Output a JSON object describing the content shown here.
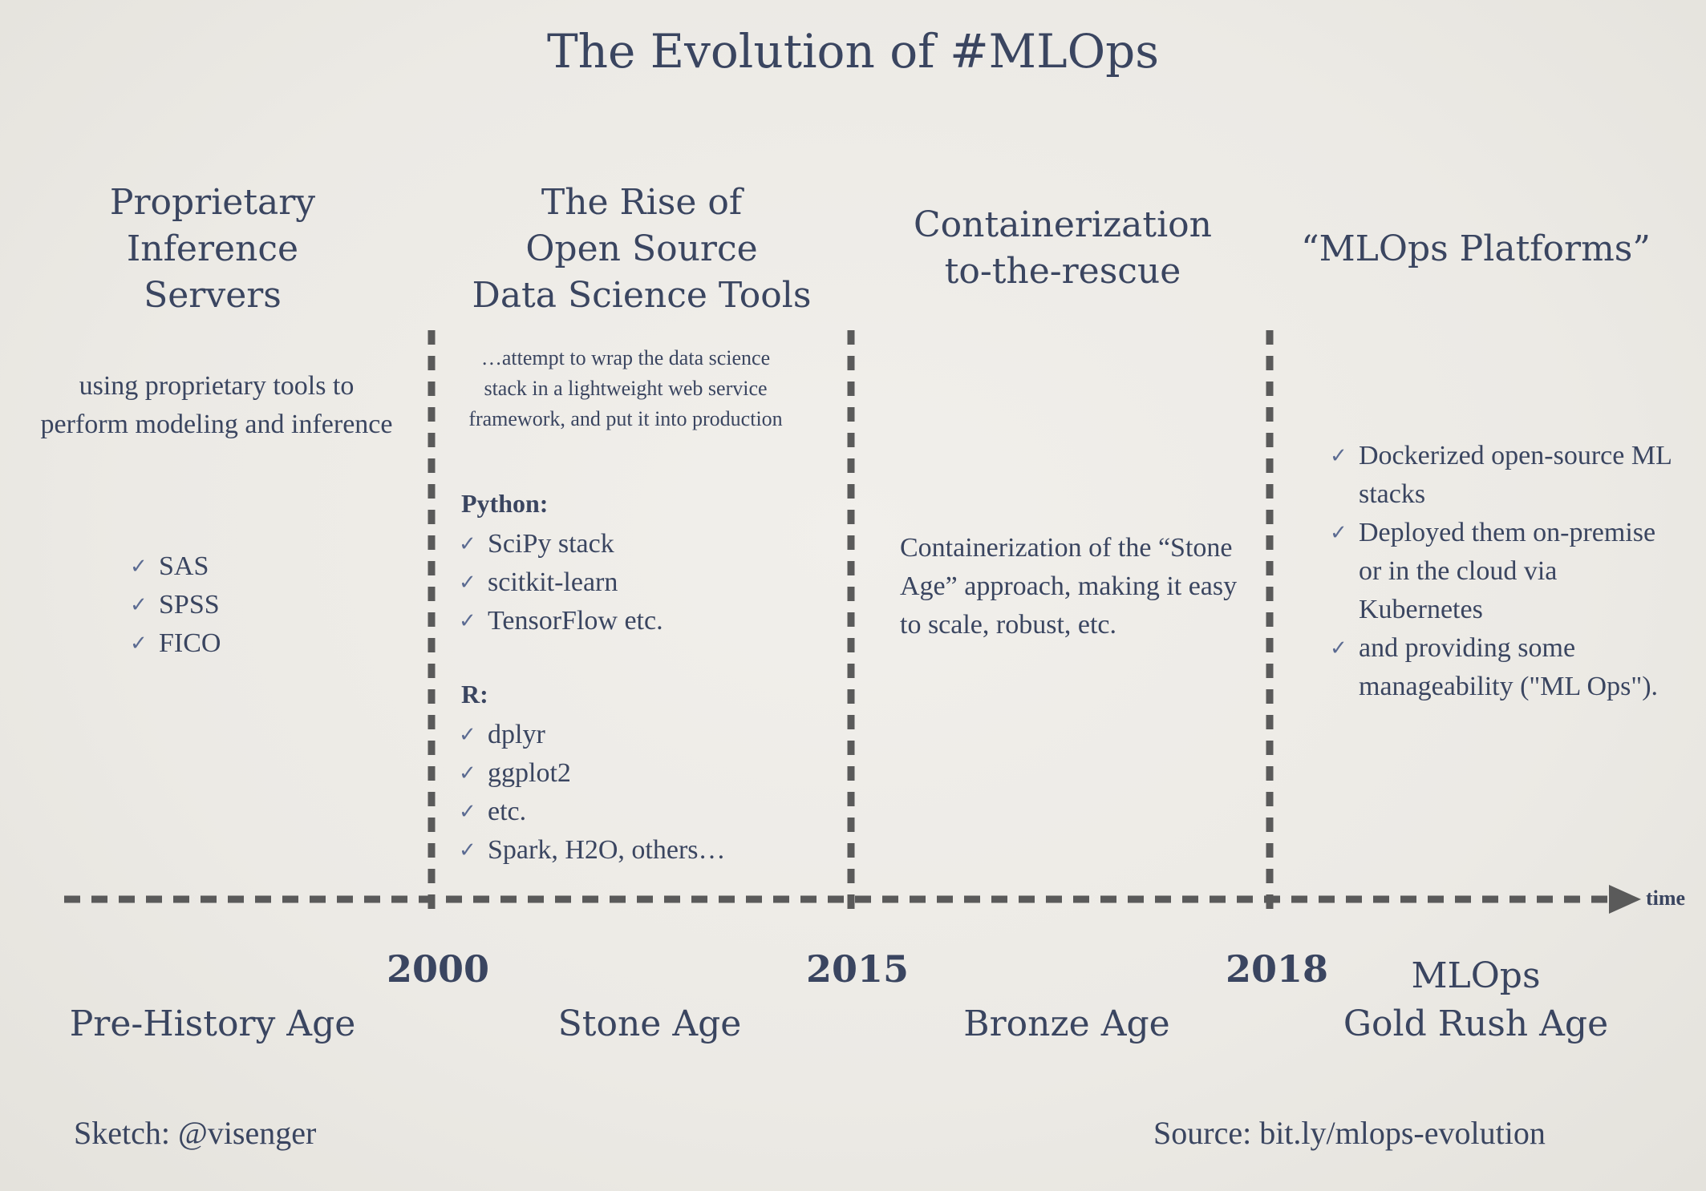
{
  "title": "The Evolution of #MLOps",
  "axis_label": "time",
  "columns": [
    {
      "title_lines": [
        "Proprietary",
        "Inference",
        "Servers"
      ],
      "description": "using proprietary tools to perform modeling and inference",
      "items": [
        "SAS",
        "SPSS",
        "FICO"
      ],
      "age": "Pre-History Age"
    },
    {
      "title_lines": [
        "The Rise of",
        "Open Source",
        "Data Science Tools"
      ],
      "description": "…attempt to wrap the data science stack in a lightweight web service framework, and put it into production",
      "groups": [
        {
          "heading": "Python:",
          "items": [
            "SciPy stack",
            "scitkit-learn",
            "TensorFlow etc."
          ]
        },
        {
          "heading": "R:",
          "items": [
            "dplyr",
            "ggplot2",
            "etc.",
            "Spark, H2O, others…"
          ]
        }
      ],
      "age": "Stone Age"
    },
    {
      "title_lines": [
        "Containerization",
        "to-the-rescue"
      ],
      "description": "Containerization of the “Stone Age” approach, making it easy to scale, robust, etc.",
      "age": "Bronze Age"
    },
    {
      "title_lines": [
        "“MLOps Platforms”"
      ],
      "items": [
        "Dockerized open-source ML stacks",
        "Deployed them on-premise or in the cloud via Kubernetes",
        "and providing some manageability (\"ML Ops\")."
      ],
      "age_lines": [
        "MLOps",
        "Gold Rush Age"
      ]
    }
  ],
  "years": [
    "2000",
    "2015",
    "2018"
  ],
  "check_mark": "✓",
  "footer": {
    "credit": "Sketch: @visenger",
    "source": "Source: bit.ly/mlops-evolution"
  },
  "colors": {
    "text": "#3a4560",
    "line": "#5a5a5a",
    "check": "#5b6b92"
  }
}
